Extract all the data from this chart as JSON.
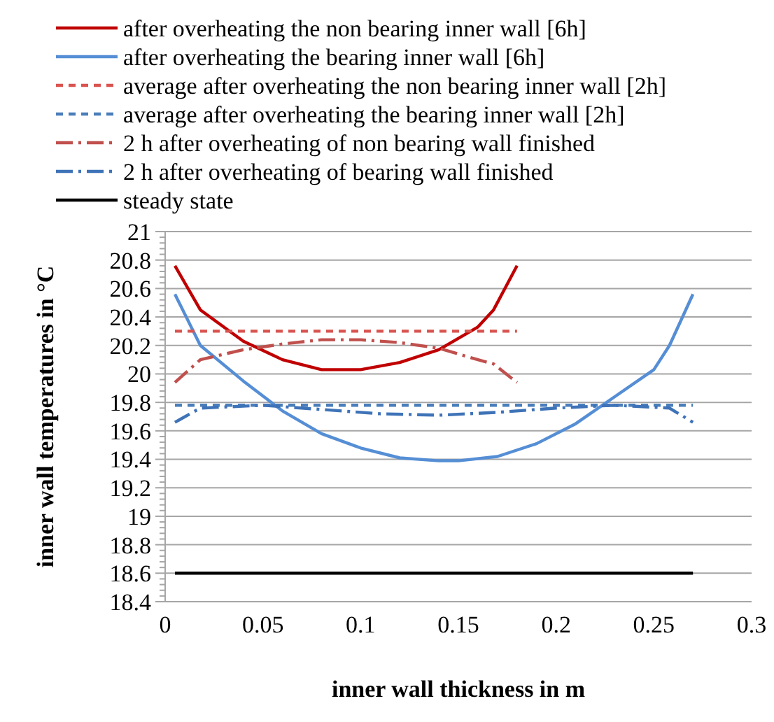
{
  "chart_data": {
    "type": "line",
    "xlabel": "inner wall thickness in m",
    "ylabel": "inner wall temperatures in °C",
    "xlim": [
      0,
      0.3
    ],
    "xticks": [
      0,
      0.05,
      0.1,
      0.15,
      0.2,
      0.25,
      0.3
    ],
    "ylim": [
      18.4,
      21
    ],
    "yticks": [
      18.4,
      18.6,
      18.8,
      19,
      19.2,
      19.4,
      19.6,
      19.8,
      20,
      20.2,
      20.4,
      20.6,
      20.8,
      21
    ],
    "grid": "y",
    "legend": "top",
    "series": [
      {
        "name": "after overheating the non bearing inner wall [6h]",
        "color": "#c00000",
        "line_style": "solid",
        "x": [
          0.005,
          0.018,
          0.04,
          0.06,
          0.08,
          0.1,
          0.12,
          0.14,
          0.16,
          0.168,
          0.18
        ],
        "values": [
          20.76,
          20.45,
          20.23,
          20.1,
          20.03,
          20.03,
          20.08,
          20.17,
          20.33,
          20.45,
          20.76
        ]
      },
      {
        "name": "after overheating the bearing inner wall [6h]",
        "color": "#558ed5",
        "line_style": "solid",
        "x": [
          0.005,
          0.018,
          0.04,
          0.06,
          0.08,
          0.1,
          0.12,
          0.14,
          0.15,
          0.17,
          0.19,
          0.21,
          0.23,
          0.25,
          0.258,
          0.27
        ],
        "values": [
          20.56,
          20.2,
          19.95,
          19.74,
          19.58,
          19.48,
          19.41,
          19.39,
          19.39,
          19.42,
          19.51,
          19.65,
          19.84,
          20.03,
          20.2,
          20.56
        ]
      },
      {
        "name": "average after overheating the non bearing inner wall [2h]",
        "color": "#d9534f",
        "line_style": "dashed",
        "x": [
          0.005,
          0.18
        ],
        "values": [
          20.3,
          20.3
        ]
      },
      {
        "name": "average after overheating the bearing inner wall [2h]",
        "color": "#4a7ebb",
        "line_style": "dashed",
        "x": [
          0.005,
          0.27
        ],
        "values": [
          19.78,
          19.78
        ]
      },
      {
        "name": "2 h after overheating of non bearing wall finished",
        "color": "#c0504d",
        "line_style": "dashdot",
        "x": [
          0.005,
          0.018,
          0.04,
          0.06,
          0.08,
          0.1,
          0.12,
          0.14,
          0.16,
          0.168,
          0.18
        ],
        "values": [
          19.94,
          20.1,
          20.17,
          20.21,
          20.24,
          20.24,
          20.22,
          20.18,
          20.1,
          20.07,
          19.94
        ]
      },
      {
        "name": "2 h after overheating of bearing wall finished",
        "color": "#3f73b8",
        "line_style": "dashdot",
        "x": [
          0.005,
          0.018,
          0.05,
          0.08,
          0.11,
          0.14,
          0.17,
          0.2,
          0.23,
          0.258,
          0.27
        ],
        "values": [
          19.66,
          19.76,
          19.78,
          19.75,
          19.72,
          19.71,
          19.73,
          19.76,
          19.78,
          19.76,
          19.66
        ]
      },
      {
        "name": "steady state",
        "color": "#000000",
        "line_style": "solid",
        "x": [
          0.005,
          0.27
        ],
        "values": [
          18.6,
          18.6
        ]
      }
    ]
  }
}
